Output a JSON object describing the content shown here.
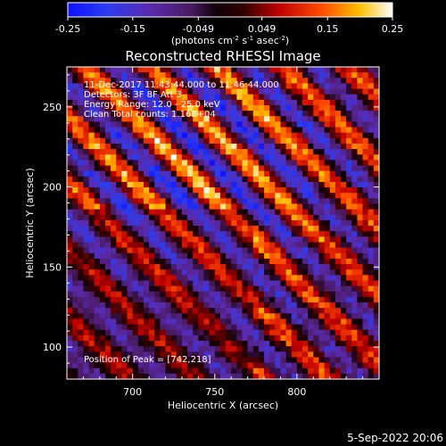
{
  "chart_data": {
    "type": "heatmap",
    "title": "Reconstructed RHESSI Image",
    "xlabel": "Heliocentric X (arcsec)",
    "ylabel": "Heliocentric Y (arcsec)",
    "xlim": [
      660,
      850
    ],
    "ylim": [
      80,
      275
    ],
    "xticks": [
      700,
      750,
      800
    ],
    "yticks": [
      100,
      150,
      200,
      250
    ],
    "colorbar": {
      "range": [
        -0.25,
        0.25
      ],
      "ticks": [
        "-0.25",
        "-0.15",
        "-0.049",
        "0.049",
        "0.15",
        "0.25"
      ],
      "unit_prefix": "(photons cm",
      "unit_exp1": "-2",
      "unit_mid": " s",
      "unit_exp2": "-1",
      "unit_mid2": " asec",
      "unit_exp3": "-2",
      "unit_suffix": ")"
    },
    "info_lines": [
      "11-Dec-2017 11:43:44.000 to 11:46:44.000",
      "Detectors: 3F 8F  Att 3",
      "Energy Range: 12.0 - 25.0 keV",
      "Clean      Total counts: 1.16E+04"
    ],
    "peak_label": "Position of Peak = [742,218]",
    "peak": [
      742,
      218
    ],
    "pattern": {
      "description": "diagonal stripe fringe pattern",
      "grid_cols": 57,
      "grid_rows": 57
    }
  },
  "footer": {
    "date": "5-Sep-2022 20:06"
  }
}
